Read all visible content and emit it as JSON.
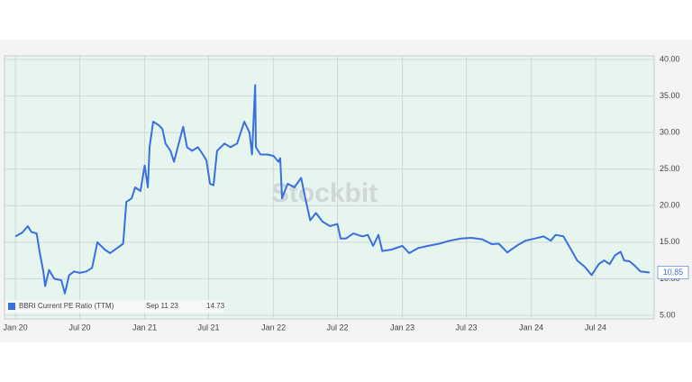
{
  "chart_data": {
    "type": "line",
    "watermark": "Stockbit",
    "xlim": [
      "2019-12-01",
      "2024-12-14"
    ],
    "xticks": [
      {
        "value": "2020-01-01",
        "label": "Jan 20"
      },
      {
        "value": "2020-07-01",
        "label": "Jul 20"
      },
      {
        "value": "2021-01-01",
        "label": "Jan 21"
      },
      {
        "value": "2021-07-01",
        "label": "Jul 21"
      },
      {
        "value": "2022-01-01",
        "label": "Jan 22"
      },
      {
        "value": "2022-07-01",
        "label": "Jul 22"
      },
      {
        "value": "2023-01-01",
        "label": "Jan 23"
      },
      {
        "value": "2023-07-01",
        "label": "Jul 23"
      },
      {
        "value": "2024-01-01",
        "label": "Jan 24"
      },
      {
        "value": "2024-07-01",
        "label": "Jul 24"
      }
    ],
    "ylim": [
      5,
      40
    ],
    "yticks": [
      {
        "value": 5,
        "label": "5.00"
      },
      {
        "value": 10,
        "label": "10.00"
      },
      {
        "value": 15,
        "label": "15.00"
      },
      {
        "value": 20,
        "label": "20.00"
      },
      {
        "value": 25,
        "label": "25.00"
      },
      {
        "value": 30,
        "label": "30.00"
      },
      {
        "value": 35,
        "label": "35.00"
      },
      {
        "value": 40,
        "label": "40.00"
      }
    ],
    "grid": true,
    "x": [
      "2020-01-01",
      "2020-01-20",
      "2020-02-05",
      "2020-02-15",
      "2020-03-01",
      "2020-03-10",
      "2020-03-20",
      "2020-03-25",
      "2020-04-05",
      "2020-04-20",
      "2020-05-10",
      "2020-05-20",
      "2020-06-01",
      "2020-06-15",
      "2020-07-01",
      "2020-07-20",
      "2020-08-05",
      "2020-08-20",
      "2020-09-10",
      "2020-09-25",
      "2020-10-15",
      "2020-11-01",
      "2020-11-10",
      "2020-11-25",
      "2020-12-05",
      "2020-12-20",
      "2021-01-01",
      "2021-01-10",
      "2021-01-15",
      "2021-01-25",
      "2021-02-10",
      "2021-02-20",
      "2021-03-01",
      "2021-03-15",
      "2021-03-25",
      "2021-04-10",
      "2021-04-20",
      "2021-05-01",
      "2021-05-15",
      "2021-06-01",
      "2021-06-15",
      "2021-06-25",
      "2021-07-05",
      "2021-07-15",
      "2021-07-25",
      "2021-08-15",
      "2021-09-01",
      "2021-09-20",
      "2021-10-10",
      "2021-10-25",
      "2021-11-01",
      "2021-11-10",
      "2021-11-12",
      "2021-11-25",
      "2021-12-15",
      "2022-01-01",
      "2022-01-15",
      "2022-01-20",
      "2022-01-25",
      "2022-02-10",
      "2022-03-01",
      "2022-03-20",
      "2022-04-01",
      "2022-04-15",
      "2022-05-01",
      "2022-05-20",
      "2022-06-10",
      "2022-07-01",
      "2022-07-10",
      "2022-07-25",
      "2022-08-15",
      "2022-09-10",
      "2022-09-25",
      "2022-10-10",
      "2022-10-25",
      "2022-11-05",
      "2022-12-01",
      "2023-01-01",
      "2023-01-20",
      "2023-02-15",
      "2023-03-15",
      "2023-04-15",
      "2023-05-15",
      "2023-06-15",
      "2023-07-15",
      "2023-08-15",
      "2023-09-11",
      "2023-10-01",
      "2023-10-25",
      "2023-11-20",
      "2023-12-15",
      "2024-01-10",
      "2024-02-05",
      "2024-02-25",
      "2024-03-10",
      "2024-04-01",
      "2024-04-25",
      "2024-05-10",
      "2024-06-01",
      "2024-06-20",
      "2024-07-10",
      "2024-07-25",
      "2024-08-10",
      "2024-08-25",
      "2024-09-10",
      "2024-09-20",
      "2024-10-05",
      "2024-10-20",
      "2024-11-05",
      "2024-12-01"
    ],
    "series": [
      {
        "name": "BBRI Current PE Ratio (TTM)",
        "color": "#3a6fe0",
        "values": [
          15.8,
          16.3,
          17.2,
          16.4,
          16.2,
          13.5,
          11.0,
          9.0,
          11.2,
          10.0,
          9.8,
          8.0,
          10.5,
          11.0,
          10.8,
          11.0,
          11.5,
          15.0,
          14.0,
          13.5,
          14.2,
          14.8,
          20.5,
          21.0,
          22.5,
          22.0,
          25.5,
          22.5,
          28.0,
          31.5,
          31.0,
          30.5,
          28.5,
          27.5,
          26.0,
          29.0,
          30.8,
          28.0,
          27.5,
          28.0,
          27.0,
          26.2,
          23.0,
          22.8,
          27.5,
          28.5,
          28.0,
          28.5,
          31.5,
          30.0,
          27.0,
          36.5,
          28.0,
          27.0,
          27.0,
          26.8,
          26.0,
          26.5,
          21.0,
          23.0,
          22.5,
          23.8,
          21.0,
          18.0,
          19.0,
          17.8,
          17.2,
          17.5,
          15.5,
          15.5,
          16.2,
          15.8,
          16.0,
          14.5,
          16.0,
          13.8,
          14.0,
          14.5,
          13.5,
          14.2,
          14.5,
          14.8,
          15.2,
          15.5,
          15.6,
          15.4,
          14.73,
          14.8,
          13.6,
          14.5,
          15.2,
          15.5,
          15.8,
          15.2,
          16.0,
          15.8,
          13.8,
          12.5,
          11.6,
          10.5,
          12.0,
          12.5,
          12.0,
          13.2,
          13.7,
          12.5,
          12.4,
          11.8,
          11.0,
          10.85
        ]
      }
    ],
    "tooltip": {
      "date": "Sep 11 23",
      "value": 14.73
    },
    "last_value": 10.85
  }
}
